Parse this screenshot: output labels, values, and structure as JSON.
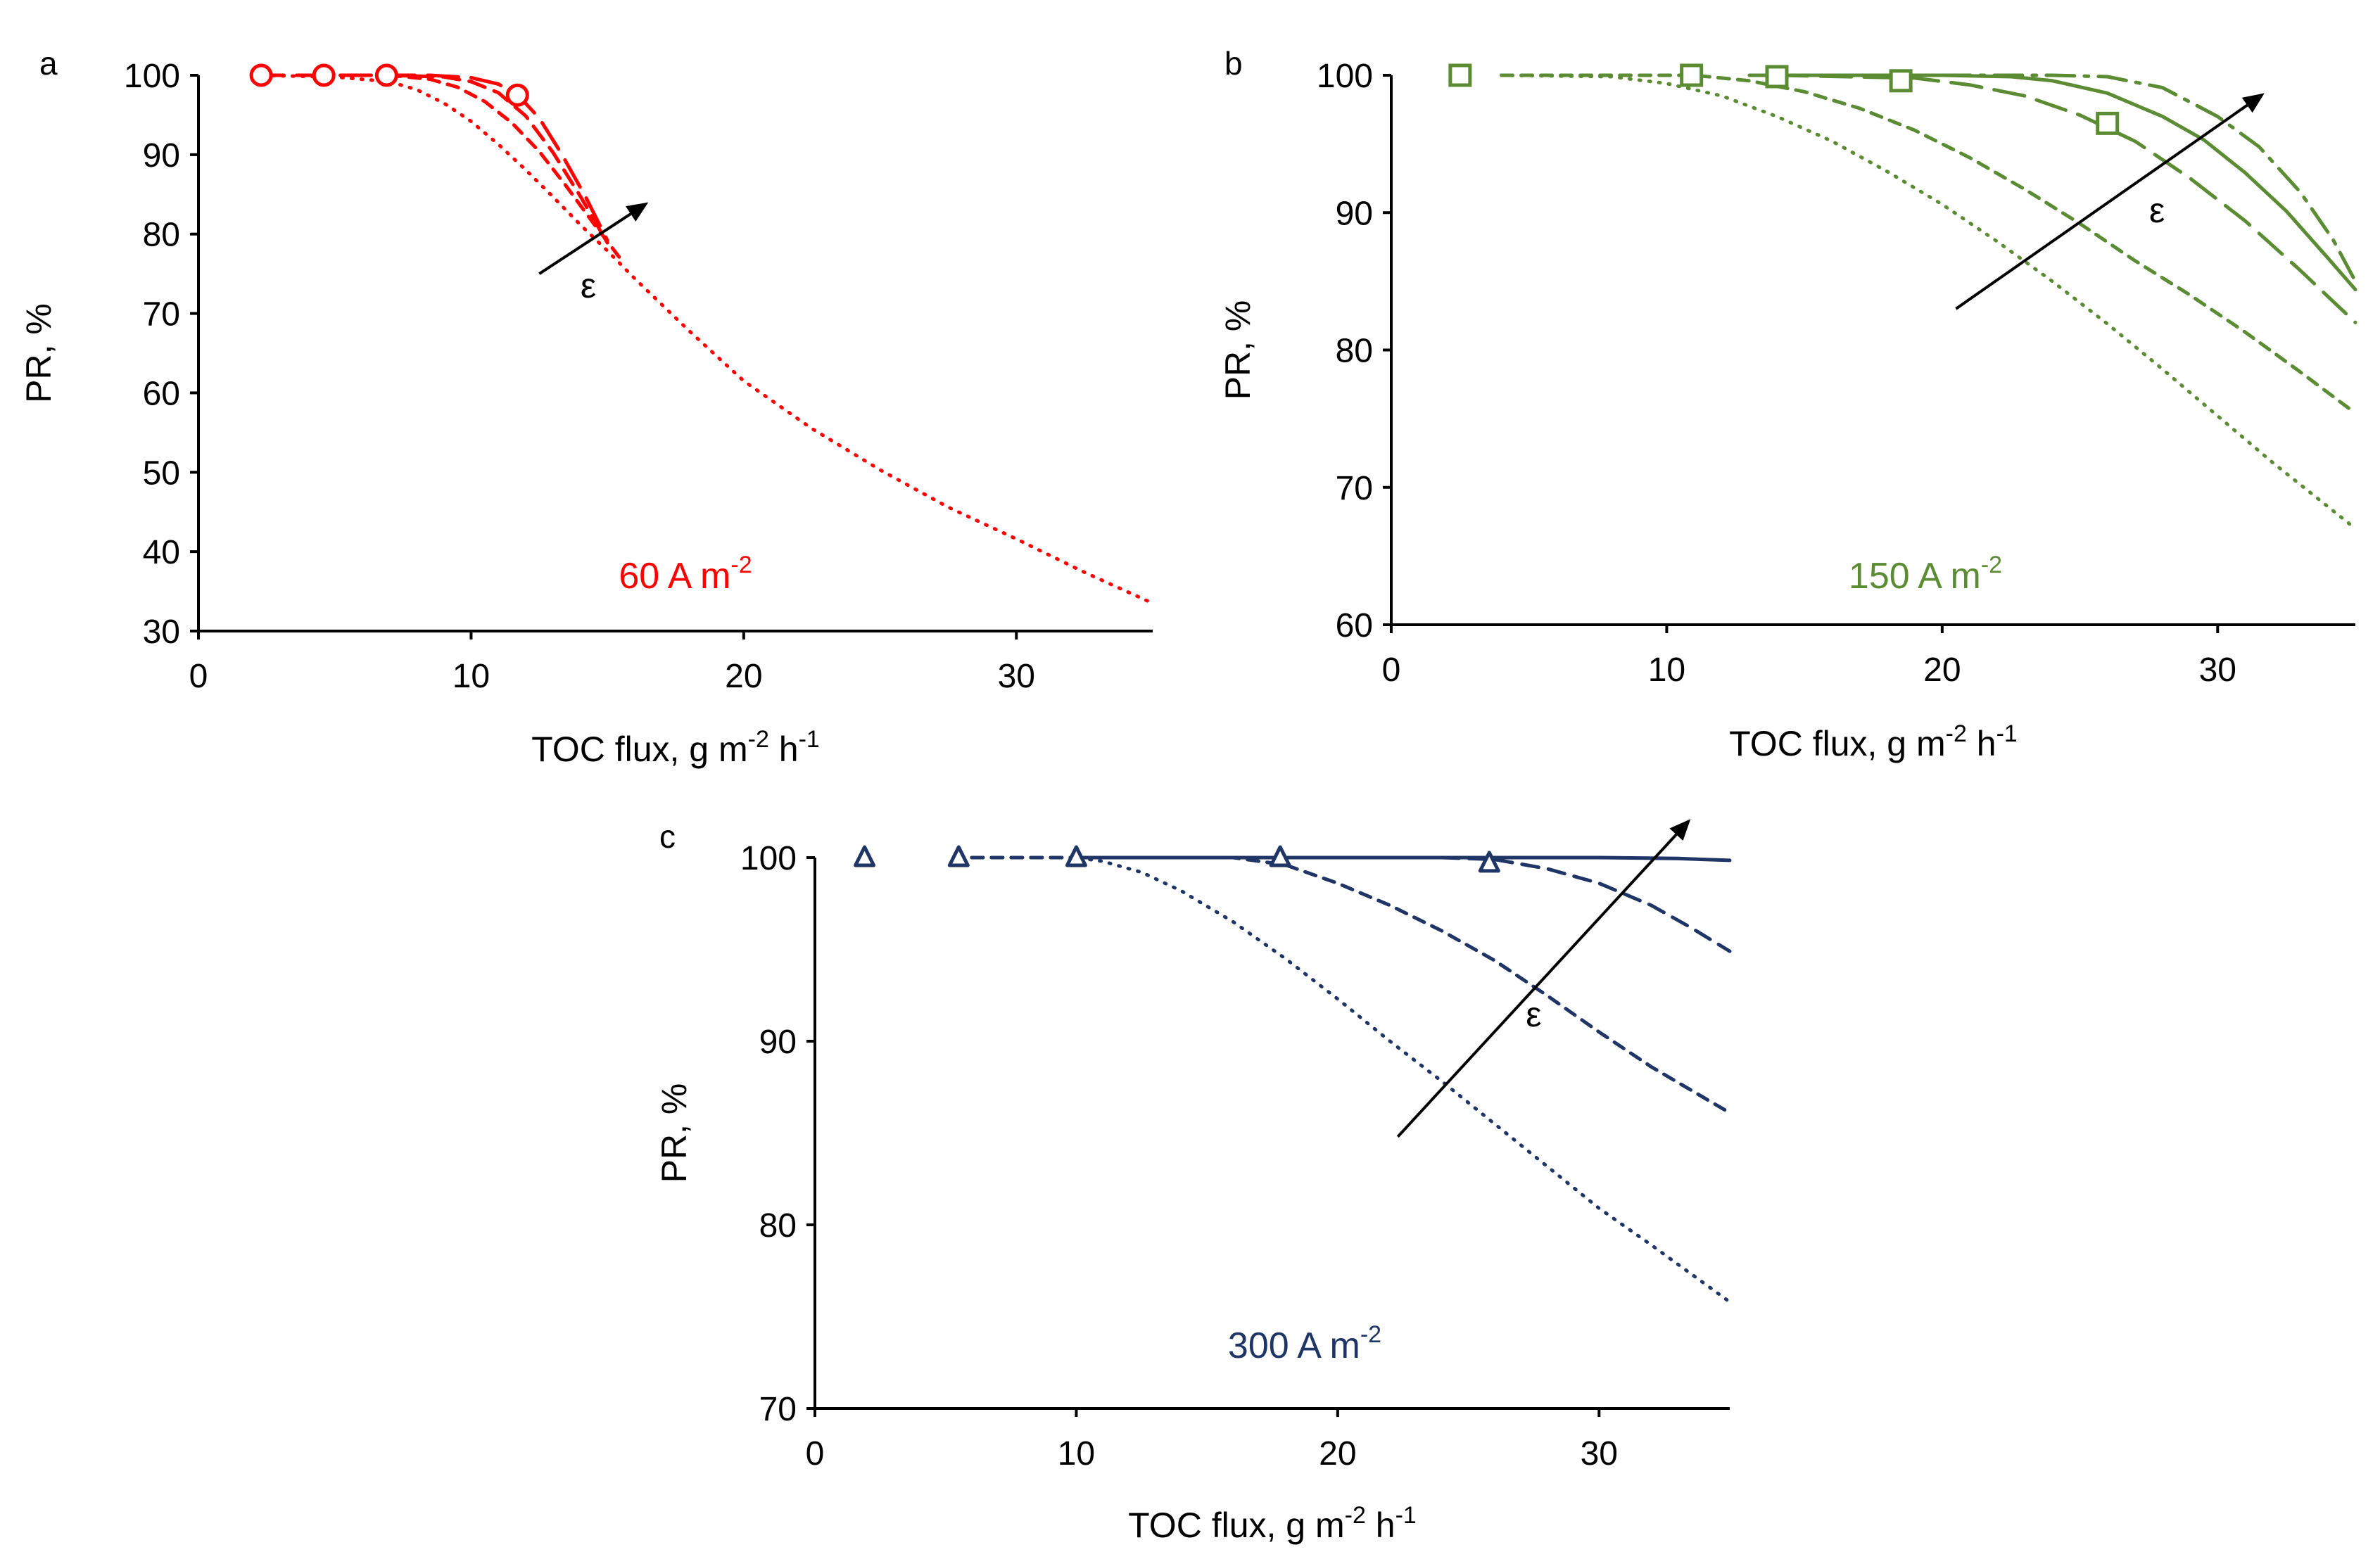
{
  "figure": {
    "colors": {
      "a": "#ff0000",
      "b": "#5b8c34",
      "c": "#1f3566",
      "axis": "#000000"
    }
  },
  "chart_data": [
    {
      "type": "line",
      "panel": "a",
      "label": "60 A m",
      "label_sup": "-2",
      "xlabel": "TOC flux, g m",
      "xlabel_sup1": "-2",
      "xlabel_mid": " h",
      "xlabel_sup2": "-1",
      "ylabel": "PR, %",
      "xlim": [
        0,
        35
      ],
      "ylim": [
        30,
        100
      ],
      "xticks": [
        0,
        10,
        20,
        30
      ],
      "yticks": [
        30,
        40,
        50,
        60,
        70,
        80,
        90,
        100
      ],
      "arrow_label": "ε",
      "arrow": {
        "from": [
          12.5,
          75
        ],
        "to": [
          16.5,
          84
        ]
      },
      "arrow_label_at": [
        14.3,
        72
      ],
      "markers": {
        "shape": "circle",
        "x": [
          2.3,
          4.6,
          6.9,
          11.7
        ],
        "y": [
          100,
          100,
          100,
          97.5
        ]
      },
      "series": [
        {
          "name": "dotted",
          "dash": "dotted",
          "x": [
            2.0,
            5.0,
            7.0,
            8.0,
            9.0,
            10.0,
            11.0,
            12.0,
            13.0,
            14.0,
            15.0,
            16.0,
            18.0,
            20.0,
            22.5,
            25.0,
            27.5,
            30.0,
            32.5,
            35.0
          ],
          "y": [
            100,
            99.8,
            99.2,
            98.2,
            96.5,
            94.2,
            91.3,
            88.1,
            84.7,
            81.2,
            77.9,
            74.4,
            67.8,
            61.5,
            55.5,
            50.3,
            45.6,
            41.6,
            37.4,
            33.5
          ]
        },
        {
          "name": "short-dashed",
          "dash": "short",
          "x": [
            7.0,
            8.5,
            9.5,
            10.5,
            11.5,
            12.5,
            13.5,
            14.5,
            15.5
          ],
          "y": [
            100,
            99.5,
            98.5,
            96.7,
            94.0,
            90.4,
            86.0,
            81.3,
            76.8
          ]
        },
        {
          "name": "medium-dashed",
          "dash": "medium",
          "x": [
            7.0,
            9.0,
            10.0,
            11.0,
            12.0,
            13.0,
            14.0,
            15.0
          ],
          "y": [
            100,
            99.8,
            99.2,
            97.8,
            94.9,
            90.3,
            84.8,
            78.9
          ]
        },
        {
          "name": "long-dashed",
          "dash": "long",
          "x": [
            2.0,
            8.5,
            10.0,
            11.0,
            11.8,
            12.5,
            13.3,
            14.2,
            15.0
          ],
          "y": [
            100,
            100,
            99.7,
            98.9,
            97.2,
            94.6,
            90.2,
            84.7,
            79.2
          ]
        }
      ]
    },
    {
      "type": "line",
      "panel": "b",
      "label": "150 A m",
      "label_sup": "-2",
      "xlabel": "TOC flux, g m",
      "xlabel_sup1": "-2",
      "xlabel_mid": " h",
      "xlabel_sup2": "-1",
      "ylabel": "PR, %",
      "xlim": [
        0,
        35
      ],
      "ylim": [
        60,
        100
      ],
      "xticks": [
        0,
        10,
        20,
        30
      ],
      "yticks": [
        60,
        70,
        80,
        90,
        100
      ],
      "arrow_label": "ε",
      "arrow": {
        "from": [
          20.5,
          83
        ],
        "to": [
          31.7,
          98.7
        ]
      },
      "arrow_label_at": [
        27.8,
        89.3
      ],
      "markers": {
        "shape": "square",
        "x": [
          2.5,
          10.9,
          14.0,
          18.5,
          26.0
        ],
        "y": [
          100,
          100,
          99.9,
          99.6,
          96.5
        ]
      },
      "series": [
        {
          "name": "dotted",
          "dash": "dotted",
          "x": [
            4.0,
            8.0,
            10.0,
            12.0,
            14.0,
            16.0,
            18.0,
            20.0,
            22.0,
            24.0,
            26.0,
            28.0,
            30.0,
            32.0,
            35.0
          ],
          "y": [
            100,
            99.9,
            99.4,
            98.5,
            97.0,
            95.2,
            93.0,
            90.6,
            87.9,
            85.0,
            81.9,
            78.6,
            75.2,
            71.8,
            67.0
          ]
        },
        {
          "name": "short-dashed",
          "dash": "short",
          "x": [
            4.0,
            11.0,
            13.0,
            15.0,
            17.0,
            19.0,
            21.0,
            23.0,
            25.0,
            27.0,
            29.0,
            31.0,
            33.0,
            35.0
          ],
          "y": [
            100,
            100,
            99.6,
            98.8,
            97.6,
            96.0,
            94.0,
            91.7,
            89.2,
            86.5,
            84.0,
            81.3,
            78.4,
            75.4
          ]
        },
        {
          "name": "long-dashed",
          "dash": "long",
          "x": [
            14.0,
            19.0,
            21.0,
            23.0,
            25.0,
            27.0,
            29.0,
            31.0,
            33.0,
            35.0
          ],
          "y": [
            100,
            99.8,
            99.3,
            98.5,
            97.1,
            95.2,
            92.5,
            89.4,
            85.8,
            82.0
          ]
        },
        {
          "name": "solid",
          "dash": "solid",
          "x": [
            13.0,
            20.0,
            22.5,
            24.0,
            26.0,
            28.0,
            29.5,
            31.0,
            32.5,
            34.0,
            35.0
          ],
          "y": [
            100,
            100,
            99.9,
            99.6,
            98.7,
            97.0,
            95.3,
            92.9,
            90.1,
            86.7,
            84.4
          ]
        },
        {
          "name": "dash-dot",
          "dash": "dashdot",
          "x": [
            20.0,
            24.0,
            26.0,
            28.0,
            30.0,
            31.5,
            33.0,
            34.2,
            35.0
          ],
          "y": [
            100,
            100,
            99.9,
            99.1,
            97.0,
            94.8,
            91.5,
            88.0,
            85.0
          ]
        }
      ]
    },
    {
      "type": "line",
      "panel": "c",
      "label": "300 A m",
      "label_sup": "-2",
      "xlabel": "TOC flux, g m",
      "xlabel_sup1": "-2",
      "xlabel_mid": " h",
      "xlabel_sup2": "-1",
      "ylabel": "PR, %",
      "xlim": [
        0,
        35
      ],
      "ylim": [
        70,
        100
      ],
      "xticks": [
        0,
        10,
        20,
        30
      ],
      "yticks": [
        70,
        80,
        90,
        100
      ],
      "arrow_label": "ε",
      "arrow": {
        "from": [
          22.3,
          84.8
        ],
        "to": [
          33.5,
          102.1
        ]
      },
      "arrow_label_at": [
        27.5,
        90.8
      ],
      "markers": {
        "shape": "triangle",
        "x": [
          1.9,
          5.5,
          10.0,
          17.8,
          25.8
        ],
        "y": [
          100,
          100,
          100,
          100,
          99.7
        ]
      },
      "series": [
        {
          "name": "dotted",
          "dash": "dotted",
          "x": [
            6.0,
            10.0,
            11.0,
            12.5,
            14.0,
            16.0,
            18.0,
            20.0,
            22.0,
            24.0,
            26.0,
            28.0,
            30.0,
            32.0,
            35.0
          ],
          "y": [
            100,
            100,
            99.8,
            99.2,
            98.2,
            96.5,
            94.5,
            92.3,
            90.0,
            87.8,
            85.5,
            83.2,
            80.9,
            78.9,
            75.8
          ]
        },
        {
          "name": "short-dashed",
          "dash": "short",
          "x": [
            6.0,
            16.0,
            18.0,
            20.0,
            22.0,
            24.0,
            26.0,
            28.0,
            30.0,
            32.0,
            35.0
          ],
          "y": [
            100,
            100,
            99.6,
            98.6,
            97.4,
            96.0,
            94.4,
            92.5,
            90.5,
            88.6,
            86.1
          ]
        },
        {
          "name": "medium-dashed",
          "dash": "medium",
          "x": [
            24.0,
            26.0,
            28.0,
            30.0,
            32.0,
            33.5,
            35.0
          ],
          "y": [
            100,
            99.9,
            99.4,
            98.6,
            97.4,
            96.2,
            94.9
          ]
        },
        {
          "name": "solid",
          "dash": "solid",
          "x": [
            10.0,
            20.0,
            25.0,
            30.0,
            33.0,
            35.0
          ],
          "y": [
            100,
            100,
            100,
            100,
            99.95,
            99.85
          ]
        }
      ]
    }
  ]
}
